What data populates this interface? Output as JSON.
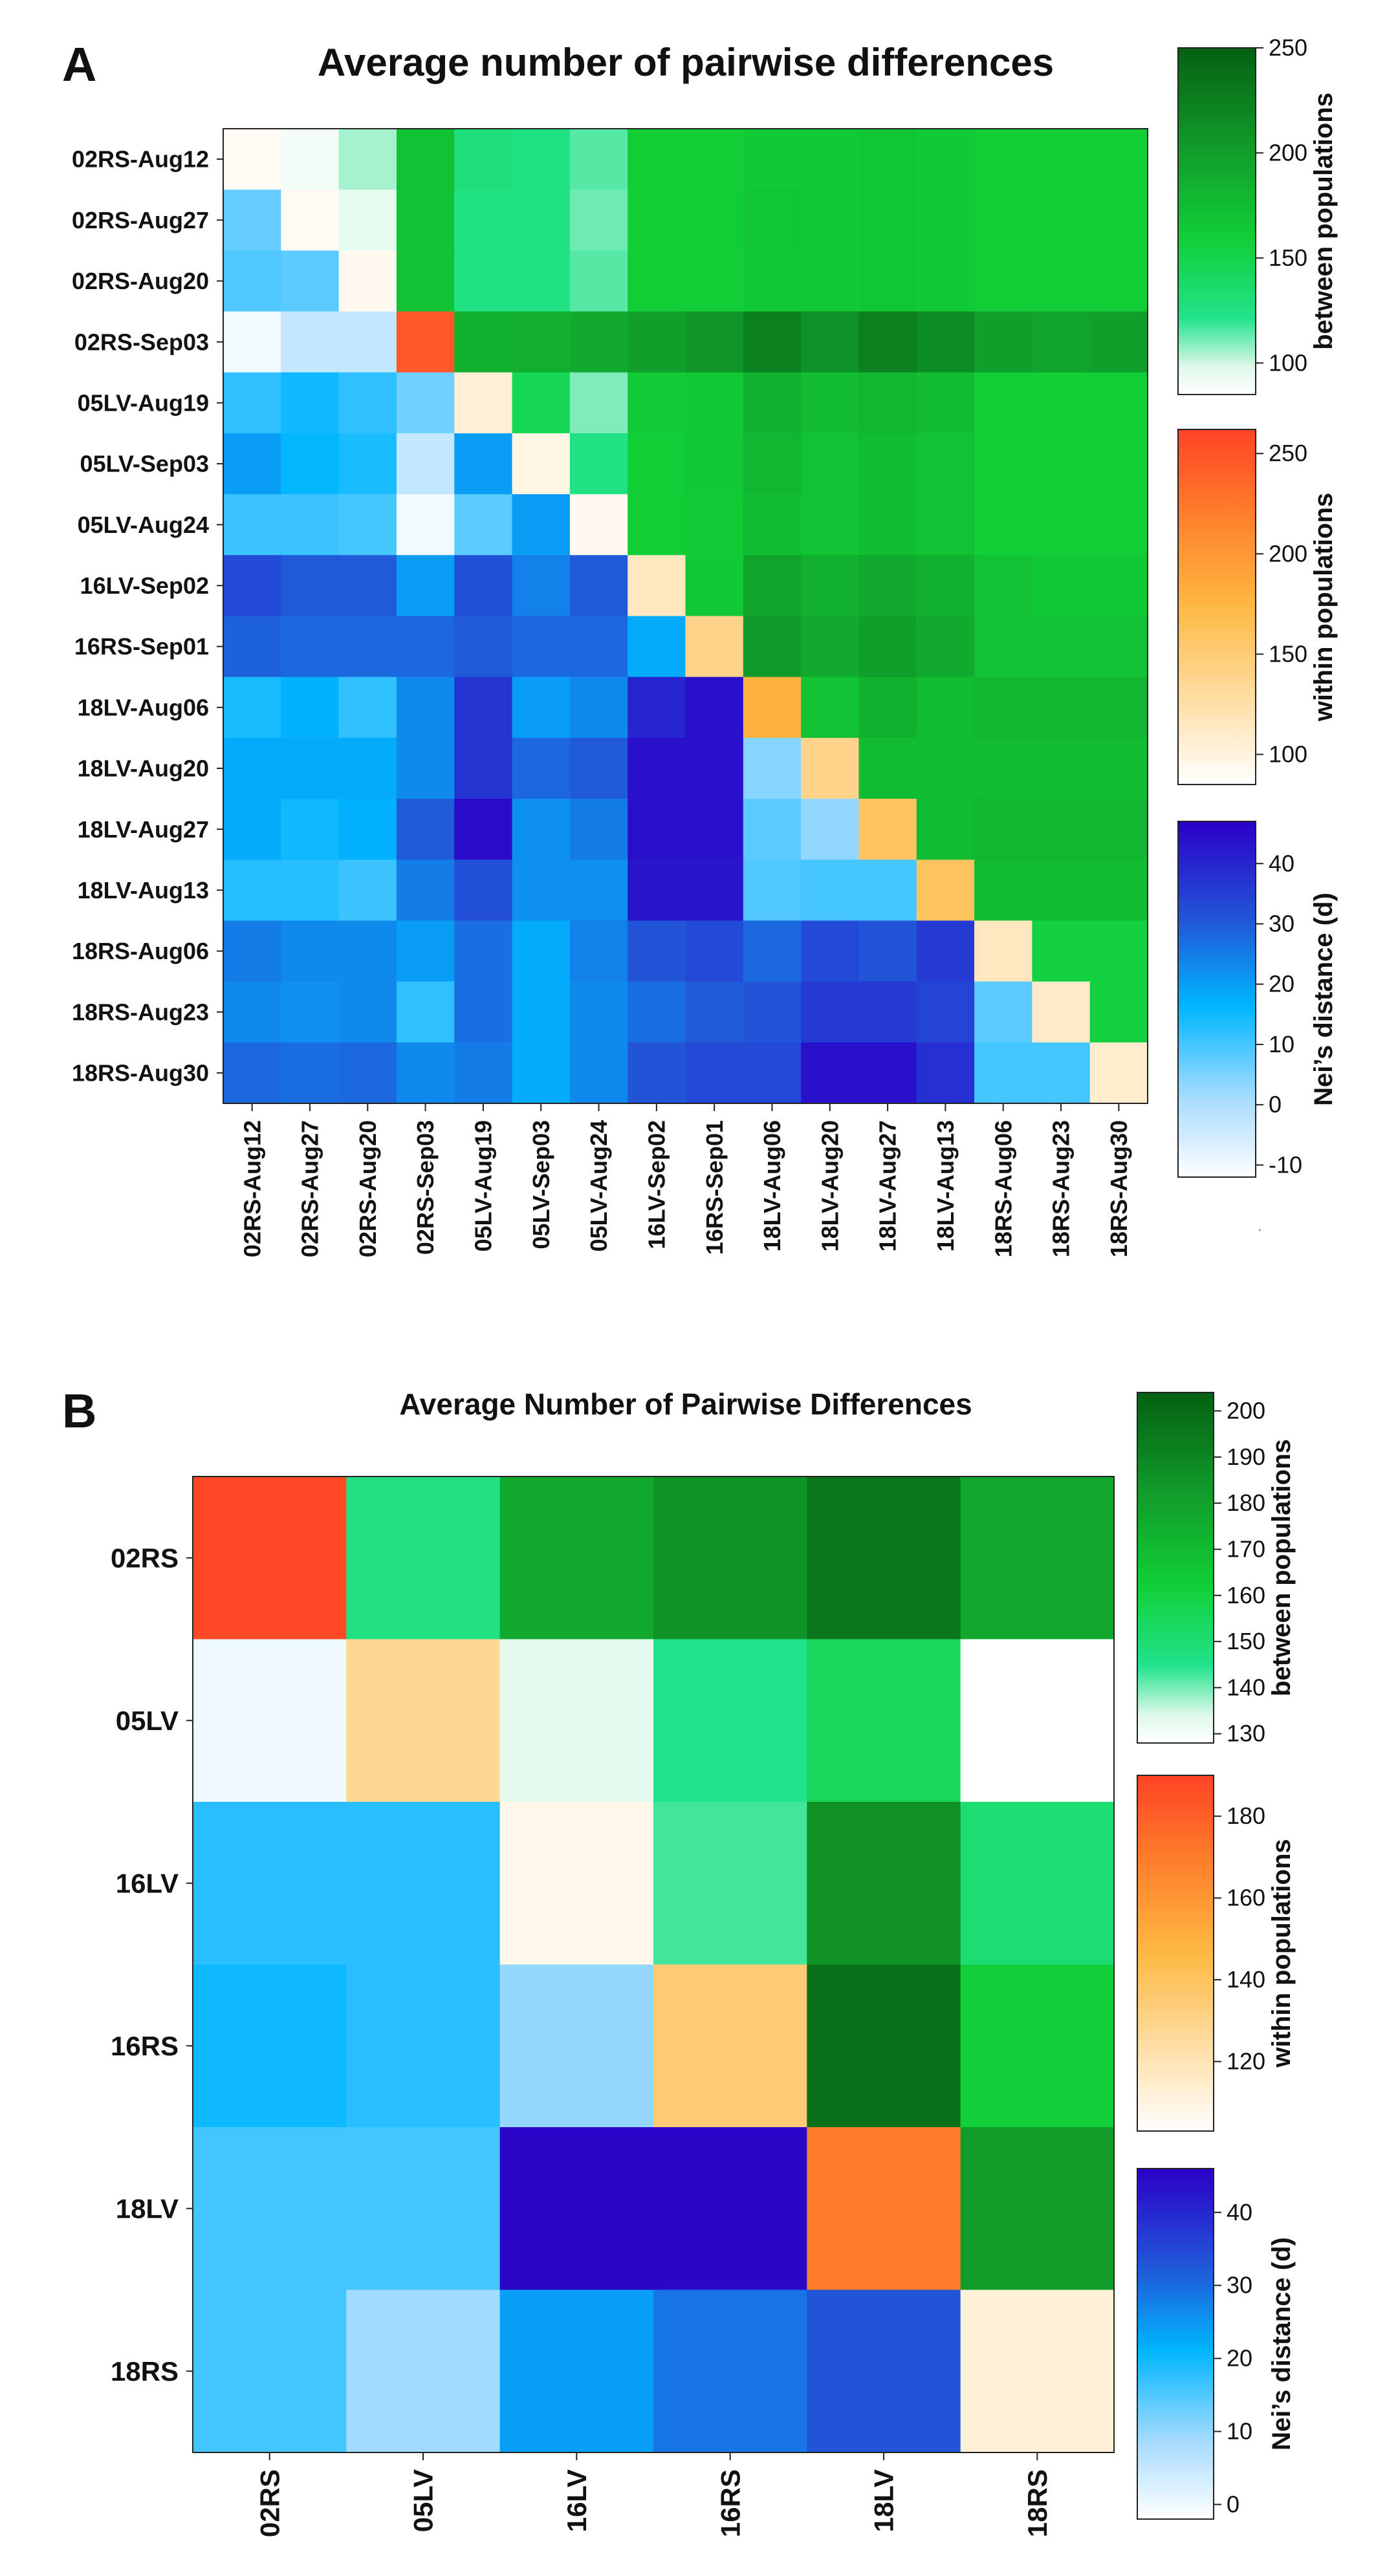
{
  "chart_data": [
    {
      "panel": "A",
      "type": "heatmap",
      "title": "Average number of pairwise differences",
      "rows": [
        "02RS-Aug12",
        "02RS-Aug27",
        "02RS-Aug20",
        "02RS-Sep03",
        "05LV-Aug19",
        "05LV-Sep03",
        "05LV-Aug24",
        "16LV-Sep02",
        "16RS-Sep01",
        "18LV-Aug06",
        "18LV-Aug20",
        "18LV-Aug27",
        "18LV-Aug13",
        "18RS-Aug06",
        "18RS-Aug23",
        "18RS-Aug30"
      ],
      "cols": [
        "02RS-Aug12",
        "02RS-Aug27",
        "02RS-Aug20",
        "02RS-Sep03",
        "05LV-Aug19",
        "05LV-Sep03",
        "05LV-Aug24",
        "16LV-Sep02",
        "16RS-Sep01",
        "18LV-Aug06",
        "18LV-Aug20",
        "18LV-Aug27",
        "18LV-Aug13",
        "18RS-Aug06",
        "18RS-Aug23",
        "18RS-Aug30"
      ],
      "encoding": "upper triangle = between populations; diagonal = within populations; lower triangle = Nei's distance (d)",
      "values": [
        [
          90,
          90,
          105,
          170,
          130,
          125,
          115,
          160,
          160,
          165,
          165,
          167,
          165,
          160,
          160,
          160
        ],
        [
          7,
          90,
          95,
          170,
          125,
          125,
          112,
          160,
          160,
          167,
          165,
          167,
          165,
          160,
          160,
          160
        ],
        [
          9,
          8,
          92,
          170,
          125,
          125,
          115,
          160,
          160,
          165,
          165,
          167,
          165,
          160,
          160,
          160
        ],
        [
          -10,
          -3,
          -3,
          248,
          185,
          187,
          190,
          200,
          207,
          225,
          210,
          225,
          215,
          200,
          195,
          200
        ],
        [
          12,
          15,
          12,
          6,
          105,
          145,
          110,
          163,
          165,
          185,
          175,
          180,
          175,
          160,
          160,
          160
        ],
        [
          20,
          16,
          14,
          -3,
          20,
          98,
          125,
          160,
          165,
          180,
          170,
          175,
          170,
          160,
          160,
          160
        ],
        [
          11,
          11,
          10,
          -10,
          8,
          20,
          92,
          160,
          163,
          175,
          170,
          175,
          170,
          160,
          160,
          160
        ],
        [
          33,
          30,
          30,
          20,
          32,
          24,
          30,
          115,
          165,
          195,
          185,
          190,
          185,
          170,
          165,
          165
        ],
        [
          29,
          28,
          28,
          28,
          30,
          28,
          28,
          18,
          140,
          205,
          190,
          200,
          190,
          170,
          170,
          170
        ],
        [
          14,
          17,
          12,
          23,
          37,
          20,
          23,
          40,
          44,
          180,
          170,
          185,
          175,
          180,
          180,
          180
        ],
        [
          18,
          18,
          18,
          23,
          37,
          28,
          30,
          44,
          44,
          4,
          140,
          175,
          175,
          175,
          175,
          175
        ],
        [
          18,
          15,
          17,
          30,
          45,
          22,
          25,
          44,
          44,
          8,
          3,
          160,
          175,
          180,
          180,
          180
        ],
        [
          13,
          13,
          11,
          25,
          32,
          22,
          22,
          43,
          43,
          9,
          10,
          10,
          160,
          175,
          175,
          175
        ],
        [
          25,
          23,
          23,
          20,
          27,
          18,
          24,
          31,
          33,
          28,
          33,
          31,
          36,
          115,
          155,
          155
        ],
        [
          23,
          22,
          23,
          12,
          27,
          18,
          23,
          27,
          30,
          31,
          36,
          36,
          34,
          8,
          110,
          155
        ],
        [
          28,
          27,
          28,
          23,
          25,
          18,
          23,
          31,
          33,
          33,
          44,
          44,
          38,
          10,
          10,
          108
        ]
      ],
      "colorbars": [
        {
          "label": "between populations",
          "ticks": [
            100,
            150,
            200,
            250
          ],
          "range": [
            85,
            250
          ]
        },
        {
          "label": "within populations",
          "ticks": [
            100,
            150,
            200,
            250
          ],
          "range": [
            85,
            262
          ]
        },
        {
          "label": "Nei’s distance (d)",
          "ticks": [
            -10,
            0,
            10,
            20,
            30,
            40
          ],
          "range": [
            -12,
            47
          ]
        }
      ]
    },
    {
      "panel": "B",
      "type": "heatmap",
      "title": "Average Number of Pairwise Differences",
      "rows": [
        "02RS",
        "05LV",
        "16LV",
        "16RS",
        "18LV",
        "18RS"
      ],
      "cols": [
        "02RS",
        "05LV",
        "16LV",
        "16RS",
        "18LV",
        "18RS"
      ],
      "encoding": "upper triangle = between populations; diagonal = within populations; lower triangle = Nei's distance (d)",
      "values": [
        [
          188,
          147,
          177,
          185,
          196,
          178
        ],
        [
          0,
          128,
          133,
          145,
          155,
          128
        ],
        [
          18,
          18,
          108,
          143,
          186,
          150
        ],
        [
          20,
          18,
          10,
          135,
          198,
          162
        ],
        [
          16,
          16,
          45,
          45,
          170,
          182
        ],
        [
          16,
          9,
          24,
          29,
          33,
          112
        ]
      ],
      "colorbars": [
        {
          "label": "between populations",
          "ticks": [
            130,
            140,
            150,
            160,
            170,
            180,
            190,
            200
          ],
          "range": [
            128,
            204
          ]
        },
        {
          "label": "within populations",
          "ticks": [
            120,
            140,
            160,
            180
          ],
          "range": [
            103,
            190
          ]
        },
        {
          "label": "Nei’s distance (d)",
          "ticks": [
            0,
            10,
            20,
            30,
            40
          ],
          "range": [
            -2,
            46
          ]
        }
      ]
    }
  ],
  "stray_mark": "'"
}
